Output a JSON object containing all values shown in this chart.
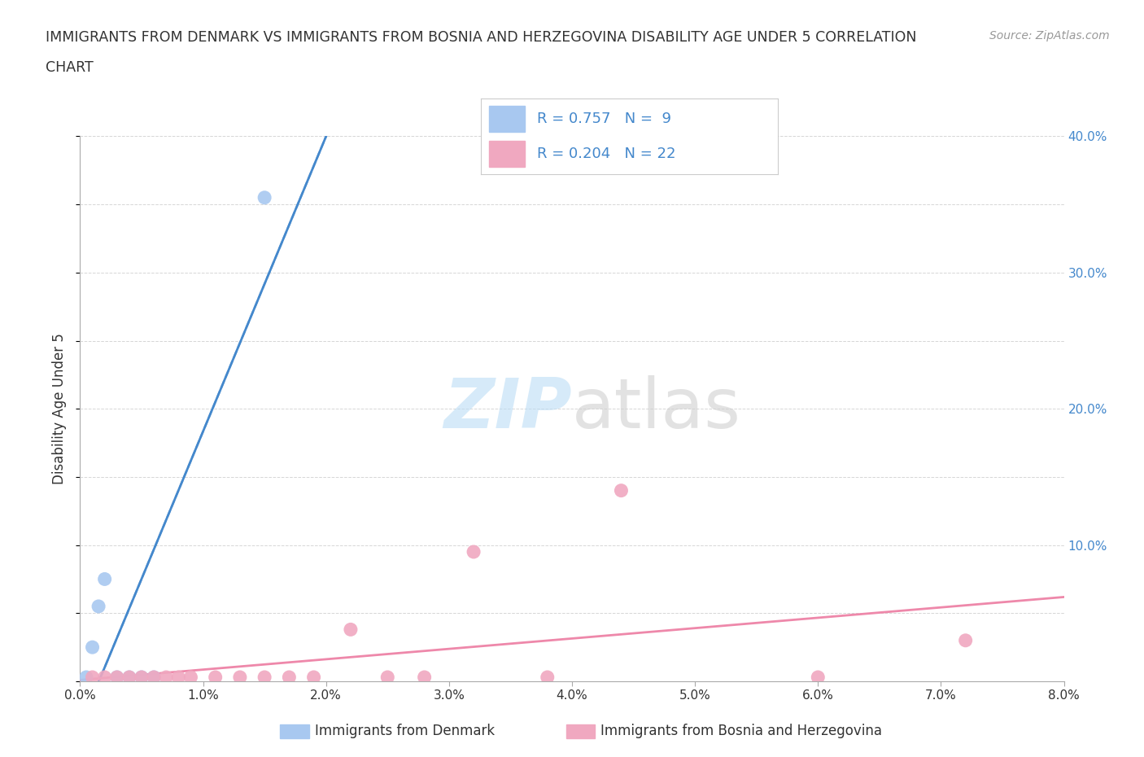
{
  "title_line1": "IMMIGRANTS FROM DENMARK VS IMMIGRANTS FROM BOSNIA AND HERZEGOVINA DISABILITY AGE UNDER 5 CORRELATION",
  "title_line2": "CHART",
  "source_text": "Source: ZipAtlas.com",
  "ylabel": "Disability Age Under 5",
  "xlim": [
    0.0,
    0.08
  ],
  "ylim": [
    0.0,
    0.4
  ],
  "xticks": [
    0.0,
    0.01,
    0.02,
    0.03,
    0.04,
    0.05,
    0.06,
    0.07,
    0.08
  ],
  "yticks": [
    0.0,
    0.1,
    0.2,
    0.3,
    0.4
  ],
  "xtick_labels": [
    "0.0%",
    "1.0%",
    "2.0%",
    "3.0%",
    "4.0%",
    "5.0%",
    "6.0%",
    "7.0%",
    "8.0%"
  ],
  "ytick_labels_right": [
    "",
    "10.0%",
    "20.0%",
    "30.0%",
    "40.0%"
  ],
  "denmark_x": [
    0.0005,
    0.001,
    0.0015,
    0.002,
    0.003,
    0.004,
    0.005,
    0.006,
    0.015
  ],
  "denmark_y": [
    0.003,
    0.025,
    0.055,
    0.075,
    0.003,
    0.003,
    0.003,
    0.003,
    0.355
  ],
  "bosnia_x": [
    0.001,
    0.002,
    0.003,
    0.004,
    0.005,
    0.006,
    0.007,
    0.008,
    0.009,
    0.011,
    0.013,
    0.015,
    0.017,
    0.019,
    0.022,
    0.025,
    0.028,
    0.032,
    0.038,
    0.044,
    0.06,
    0.072
  ],
  "bosnia_y": [
    0.003,
    0.003,
    0.003,
    0.003,
    0.003,
    0.003,
    0.003,
    0.003,
    0.003,
    0.003,
    0.003,
    0.003,
    0.003,
    0.003,
    0.038,
    0.003,
    0.003,
    0.095,
    0.003,
    0.14,
    0.003,
    0.03
  ],
  "denmark_color": "#a8c8f0",
  "bosnia_color": "#f0a8c0",
  "denmark_line_color": "#4488cc",
  "bosnia_line_color": "#ee88aa",
  "R_denmark": 0.757,
  "N_denmark": 9,
  "R_bosnia": 0.204,
  "N_bosnia": 22,
  "watermark_zip": "ZIP",
  "watermark_atlas": "atlas",
  "legend_denmark": "Immigrants from Denmark",
  "legend_bosnia": "Immigrants from Bosnia and Herzegovina",
  "background_color": "#ffffff",
  "grid_color": "#cccccc",
  "legend_text_color": "#4488cc",
  "title_color": "#333333",
  "source_color": "#999999",
  "ylabel_color": "#333333",
  "tick_color_right": "#4488cc",
  "tick_color_bottom": "#333333"
}
